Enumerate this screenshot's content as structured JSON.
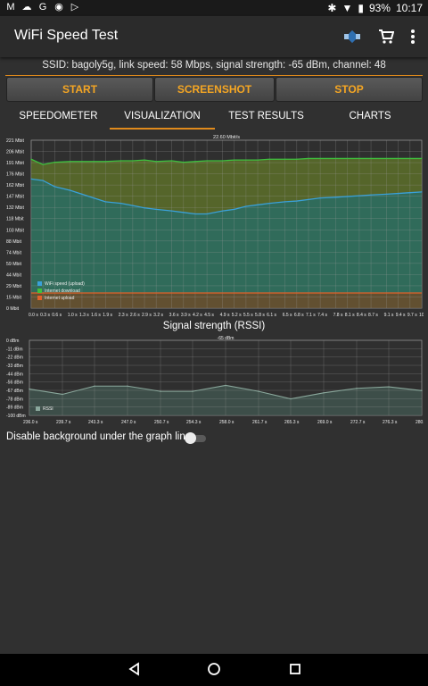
{
  "status_bar": {
    "left_icons": [
      "m-icon",
      "weather-icon",
      "g-icon",
      "circle-icon",
      "play-icon"
    ],
    "battery": "93%",
    "time": "10:17"
  },
  "app": {
    "title": "WiFi Speed Test"
  },
  "ssid_line": "SSID: bagoly5g, link speed: 58 Mbps, signal strength: -65 dBm, channel: 48",
  "buttons": {
    "start": "START",
    "screenshot": "SCREENSHOT",
    "stop": "STOP"
  },
  "tabs": [
    "SPEEDOMETER",
    "VISUALIZATION",
    "TEST RESULTS",
    "CHARTS"
  ],
  "active_tab": 1,
  "graph": {
    "center_label": "22.60 Mbit/s",
    "y_ticks": [
      "221 Mbit",
      "206 Mbit",
      "191 Mbit",
      "176 Mbit",
      "162 Mbit",
      "147 Mbit",
      "132 Mbit",
      "118 Mbit",
      "103 Mbit",
      "88 Mbit",
      "74 Mbit",
      "59 Mbit",
      "44 Mbit",
      "29 Mbit",
      "15 Mbit",
      "0 Mbit"
    ],
    "x_ticks": [
      "0.0 s",
      "0.3 s",
      "0.6 s",
      "1.0 s",
      "1.3 s",
      "1.6 s",
      "1.9 s",
      "2.3 s",
      "2.6 s",
      "2.9 s",
      "3.2 s",
      "3.6 s",
      "3.9 s",
      "4.2 s",
      "4.5 s",
      "4.9 s",
      "5.2 s",
      "5.5 s",
      "5.8 s",
      "6.1 s",
      "6.5 s",
      "6.8 s",
      "7.1 s",
      "7.4 s",
      "7.8 s",
      "8.1 s",
      "8.4 s",
      "8.7 s",
      "9.1 s",
      "9.4 s",
      "9.7 s",
      "10.0 s"
    ],
    "legend": [
      "WiFi speed (upload)",
      "Internet download",
      "Internet upload"
    ],
    "colors": {
      "wifi": "#3aa0d8",
      "download": "#3fbf3f",
      "upload": "#e0622a"
    }
  },
  "rssi": {
    "title": "Signal strength (RSSI)",
    "center_label": "-65 dBm",
    "y_ticks": [
      "0 dBm",
      "-11 dBm",
      "-22 dBm",
      "-33 dBm",
      "-44 dBm",
      "-56 dBm",
      "-67 dBm",
      "-78 dBm",
      "-89 dBm",
      "-100 dBm"
    ],
    "x_ticks": [
      "236.0 s",
      "239.7 s",
      "243.3 s",
      "247.0 s",
      "250.7 s",
      "254.3 s",
      "258.0 s",
      "261.7 s",
      "265.3 s",
      "269.0 s",
      "272.7 s",
      "276.3 s",
      "280.0 s"
    ],
    "legend": "RSSI"
  },
  "toggle_label": "Disable background under the graph line",
  "chart_data": [
    {
      "type": "area",
      "x": [
        0,
        0.3,
        0.6,
        1.0,
        1.3,
        1.6,
        1.9,
        2.3,
        2.6,
        2.9,
        3.2,
        3.6,
        3.9,
        4.2,
        4.5,
        4.9,
        5.2,
        5.5,
        5.8,
        6.1,
        6.5,
        6.8,
        7.1,
        7.4,
        7.8,
        8.1,
        8.4,
        8.7,
        9.1,
        9.4,
        9.7,
        10.0
      ],
      "series": [
        {
          "name": "Internet download",
          "values": [
            196,
            189,
            192,
            193,
            193,
            193,
            193,
            194,
            194,
            195,
            193,
            194,
            192,
            193,
            194,
            194,
            195,
            195,
            195,
            196,
            196,
            196,
            197,
            197,
            197,
            197,
            197,
            197,
            197,
            197,
            197,
            197
          ]
        },
        {
          "name": "WiFi speed (upload)",
          "values": [
            170,
            168,
            160,
            155,
            150,
            145,
            140,
            138,
            135,
            132,
            130,
            128,
            126,
            124,
            124,
            128,
            130,
            134,
            136,
            138,
            140,
            141,
            143,
            145,
            146,
            147,
            148,
            149,
            150,
            151,
            152,
            153
          ]
        },
        {
          "name": "Internet upload",
          "values": [
            20,
            20,
            20,
            20,
            20,
            20,
            20,
            20,
            20,
            20,
            20,
            20,
            20,
            20,
            20,
            20,
            20,
            20,
            20,
            20,
            20,
            20,
            20,
            20,
            20,
            20,
            20,
            20,
            20,
            20,
            20,
            20
          ]
        }
      ],
      "ylim": [
        0,
        221
      ]
    },
    {
      "type": "line",
      "x": [
        236.0,
        239.7,
        243.3,
        247.0,
        250.7,
        254.3,
        258.0,
        261.7,
        265.3,
        269.0,
        272.7,
        276.3,
        280.0
      ],
      "series": [
        {
          "name": "RSSI",
          "values": [
            -65,
            -72,
            -61,
            -61,
            -68,
            -68,
            -60,
            -68,
            -78,
            -70,
            -64,
            -62,
            -67
          ]
        }
      ],
      "ylim": [
        -100,
        0
      ]
    }
  ]
}
